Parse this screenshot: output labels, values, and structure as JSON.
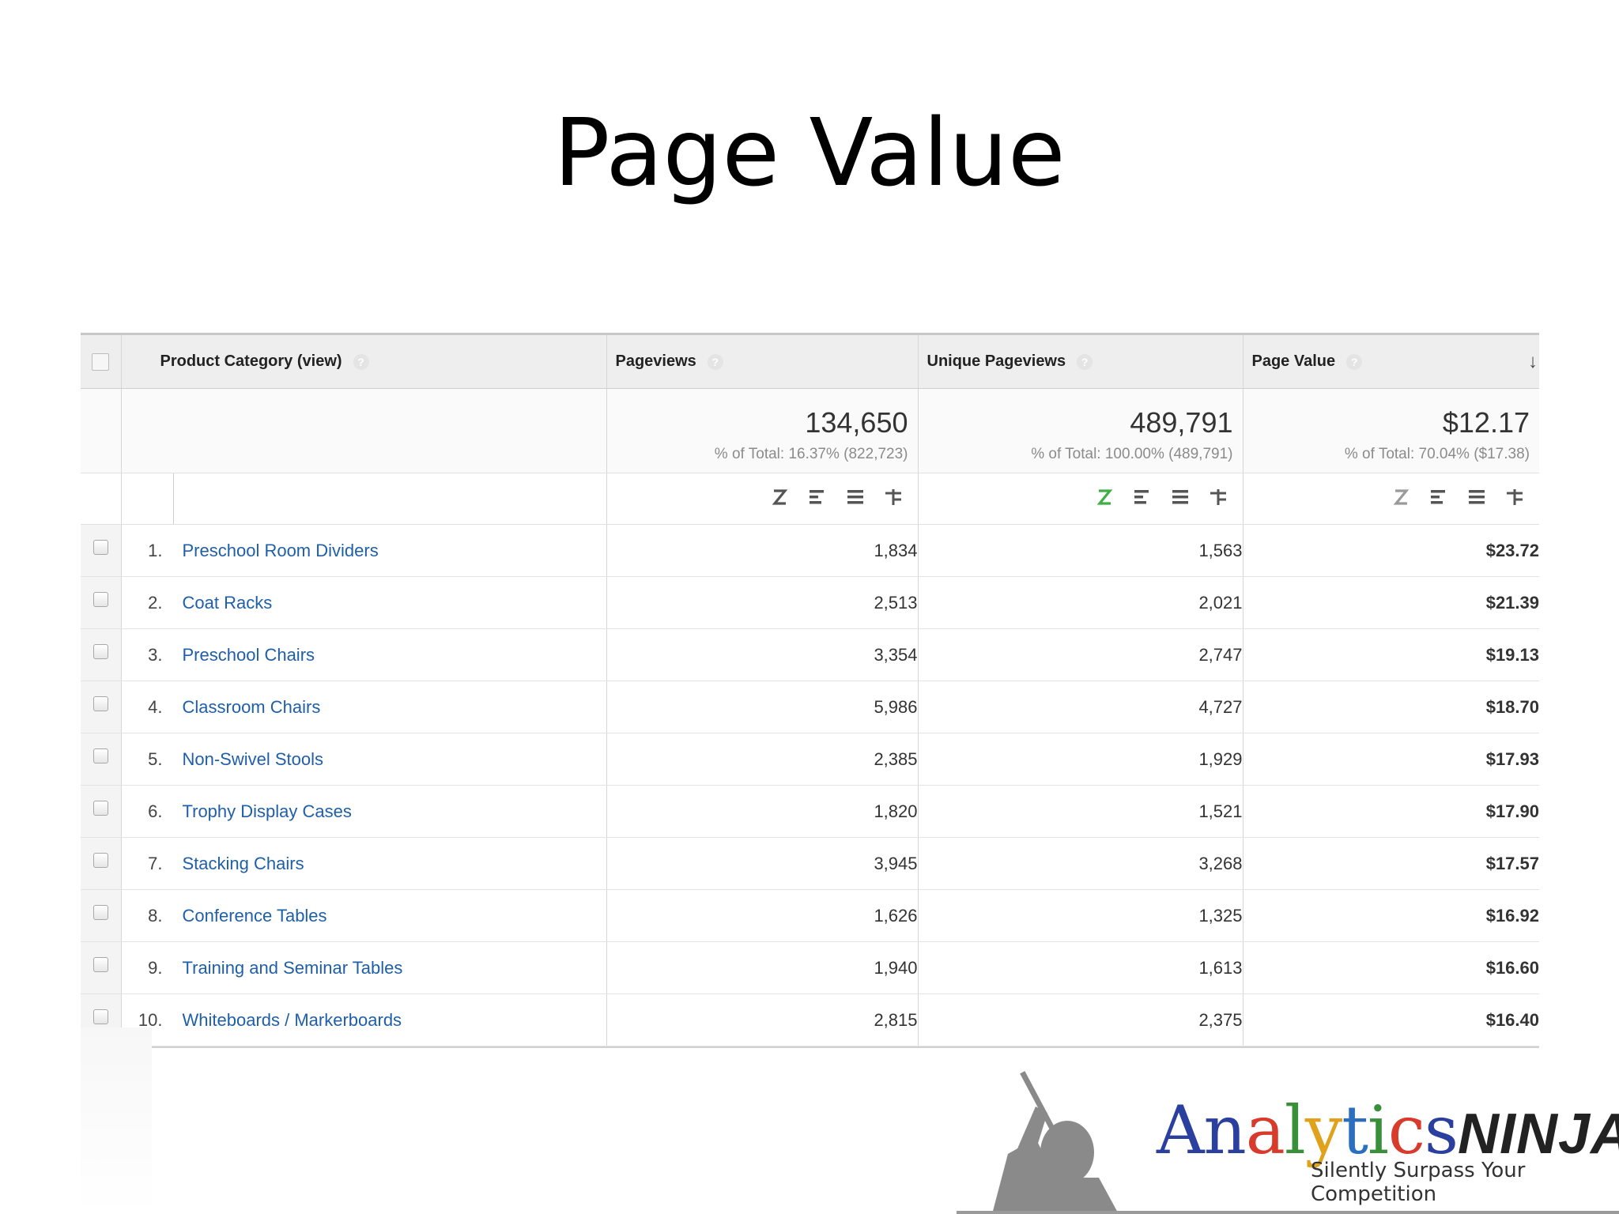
{
  "slide": {
    "title": "Page Value"
  },
  "report": {
    "columns": {
      "dimension": "Product Category (view)",
      "pageviews": "Pageviews",
      "unique_pageviews": "Unique Pageviews",
      "page_value": "Page Value",
      "help_glyph": "?",
      "sort_glyph": "↓",
      "sort_direction": "descending"
    },
    "totals": {
      "pageviews": {
        "value": "134,650",
        "pct": "% of Total: 16.37% (822,723)"
      },
      "unique_pageviews": {
        "value": "489,791",
        "pct": "% of Total: 100.00% (489,791)"
      },
      "page_value": {
        "value": "$12.17",
        "pct": "% of Total: 70.04% ($17.38)"
      }
    },
    "viz_icons": [
      "comparison-icon",
      "bar-chart-icon",
      "performance-icon",
      "pivot-icon"
    ],
    "viz_colors": {
      "active": "#3cb043",
      "inactive": "#9a9a9a",
      "dark": "#555555"
    },
    "rows": [
      {
        "rank": "1.",
        "category": "Preschool Room Dividers",
        "pageviews": "1,834",
        "unique_pageviews": "1,563",
        "page_value": "$23.72"
      },
      {
        "rank": "2.",
        "category": "Coat Racks",
        "pageviews": "2,513",
        "unique_pageviews": "2,021",
        "page_value": "$21.39"
      },
      {
        "rank": "3.",
        "category": "Preschool Chairs",
        "pageviews": "3,354",
        "unique_pageviews": "2,747",
        "page_value": "$19.13"
      },
      {
        "rank": "4.",
        "category": "Classroom Chairs",
        "pageviews": "5,986",
        "unique_pageviews": "4,727",
        "page_value": "$18.70"
      },
      {
        "rank": "5.",
        "category": "Non-Swivel Stools",
        "pageviews": "2,385",
        "unique_pageviews": "1,929",
        "page_value": "$17.93"
      },
      {
        "rank": "6.",
        "category": "Trophy Display Cases",
        "pageviews": "1,820",
        "unique_pageviews": "1,521",
        "page_value": "$17.90"
      },
      {
        "rank": "7.",
        "category": "Stacking Chairs",
        "pageviews": "3,945",
        "unique_pageviews": "3,268",
        "page_value": "$17.57"
      },
      {
        "rank": "8.",
        "category": "Conference Tables",
        "pageviews": "1,626",
        "unique_pageviews": "1,325",
        "page_value": "$16.92"
      },
      {
        "rank": "9.",
        "category": "Training and Seminar Tables",
        "pageviews": "1,940",
        "unique_pageviews": "1,613",
        "page_value": "$16.60"
      },
      {
        "rank": "10.",
        "category": "Whiteboards / Markerboards",
        "pageviews": "2,815",
        "unique_pageviews": "2,375",
        "page_value": "$16.40"
      }
    ],
    "link_color": "#1f5fa8"
  },
  "logo": {
    "wordmark_parts": [
      {
        "text": "A",
        "color": "#2b3f9e"
      },
      {
        "text": "n",
        "color": "#2b3f9e"
      },
      {
        "text": "a",
        "color": "#d83a2c"
      },
      {
        "text": "l",
        "color": "#3a8f3a"
      },
      {
        "text": "y",
        "color": "#e0a21a"
      },
      {
        "text": "t",
        "color": "#2b6fbe"
      },
      {
        "text": "i",
        "color": "#3a8f3a"
      },
      {
        "text": "c",
        "color": "#d83a2c"
      },
      {
        "text": "s",
        "color": "#2b3f9e"
      }
    ],
    "ninja": "NINJA",
    "tagline": "Silently Surpass Your Competition"
  }
}
